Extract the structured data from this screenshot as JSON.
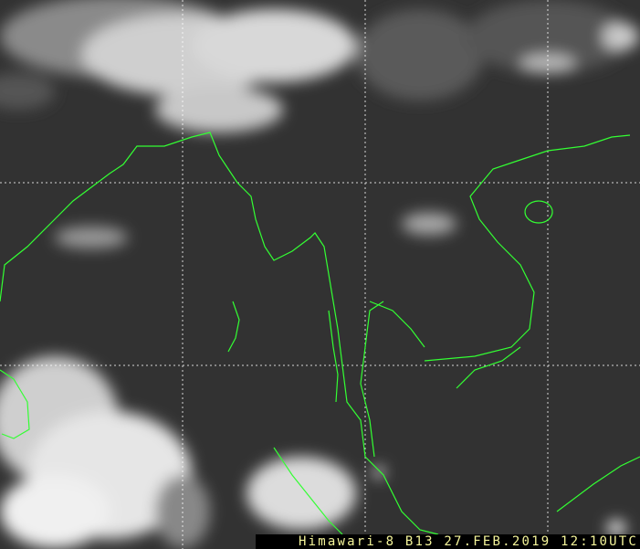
{
  "caption": "Himawari-8 B13 27.FEB.2019 12:10UTC",
  "colors": {
    "coastline": "#33ff33",
    "grid": "#ffffff",
    "caption_text": "#f4f49a",
    "caption_bg": "#000000"
  }
}
